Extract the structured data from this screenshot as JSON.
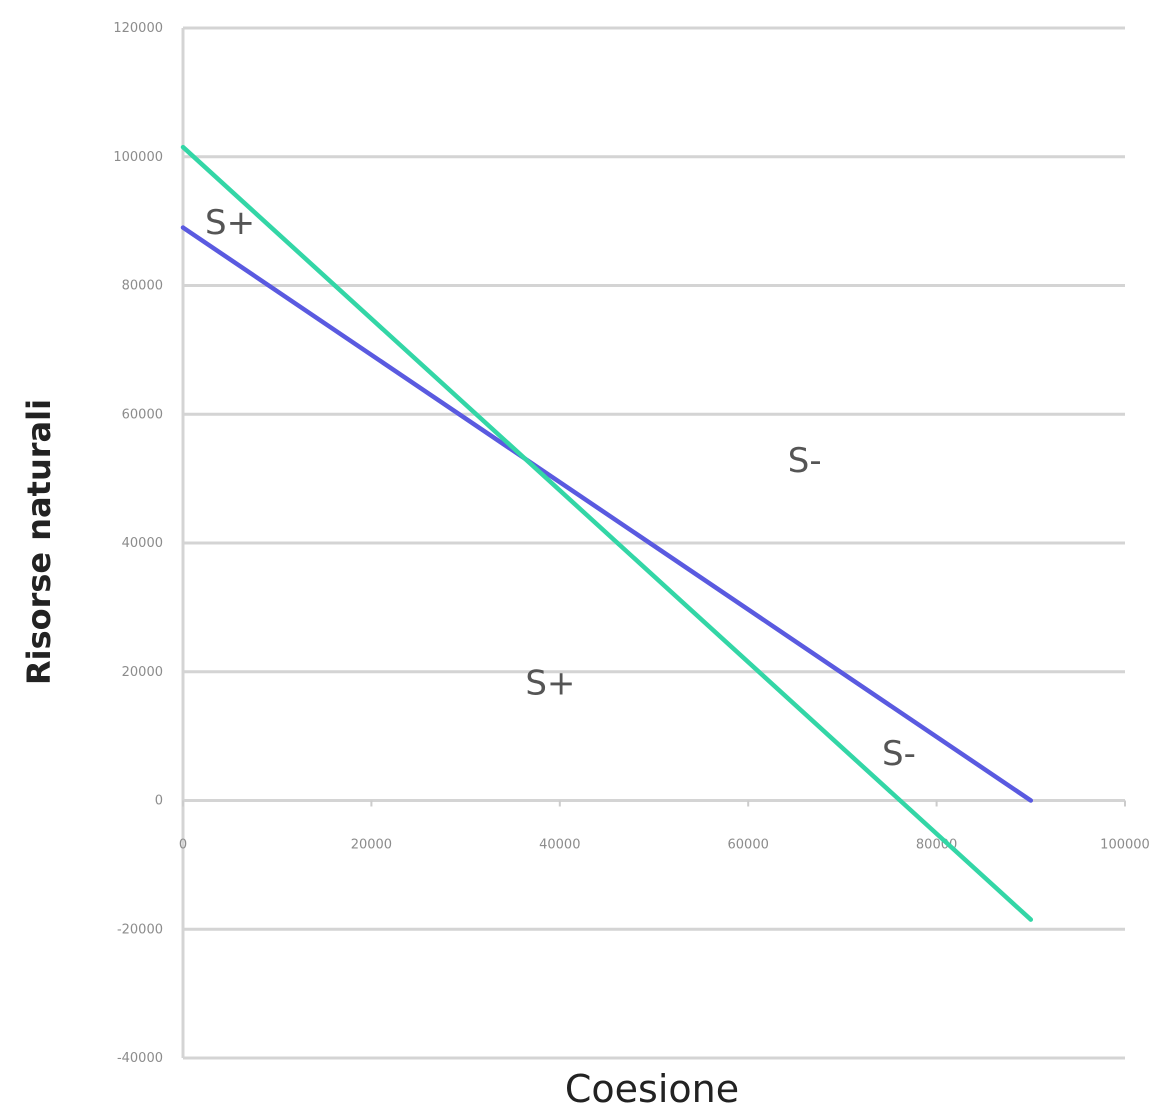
{
  "chart_data": {
    "type": "line",
    "title": "",
    "xlabel": "Coesione",
    "ylabel": "Risorse naturali",
    "xlim": [
      0,
      100000
    ],
    "ylim": [
      -40000,
      120000
    ],
    "x_ticks": [
      0,
      20000,
      40000,
      60000,
      80000,
      100000
    ],
    "y_ticks": [
      -40000,
      -20000,
      0,
      20000,
      40000,
      60000,
      80000,
      100000,
      120000
    ],
    "x_tick_labels": [
      "0",
      "20000",
      "40000",
      "60000",
      "80000",
      "100000"
    ],
    "y_tick_labels": [
      "-40000",
      "-20000",
      "0",
      "20000",
      "40000",
      "60000",
      "80000",
      "100000",
      "120000"
    ],
    "grid": "horizontal",
    "legend": "none",
    "series": [
      {
        "color": "#5a5ae0",
        "x": [
          0,
          90000
        ],
        "y": [
          89000,
          0
        ]
      },
      {
        "color": "#33d6a6",
        "x": [
          0,
          90000
        ],
        "y": [
          101500,
          -18500
        ]
      }
    ],
    "annotations": [
      {
        "text": "S+",
        "x": 5000,
        "y": 88000
      },
      {
        "text": "S-",
        "x": 66000,
        "y": 51000
      },
      {
        "text": "S+",
        "x": 39000,
        "y": 16500
      },
      {
        "text": "S-",
        "x": 76000,
        "y": 5500
      }
    ]
  }
}
